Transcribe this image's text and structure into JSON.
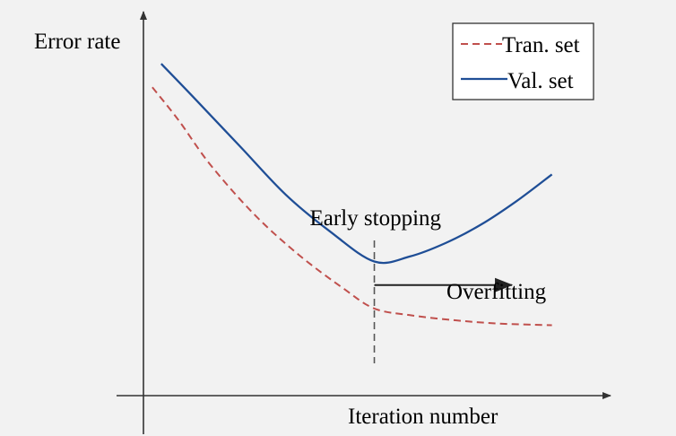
{
  "chart_data": {
    "type": "line",
    "title": "",
    "ylabel": "Error rate",
    "xlabel": "Iteration number",
    "grid": false,
    "legend_position": "top-right",
    "series": [
      {
        "name": "Tran. set",
        "color": "#c0504d",
        "style": "dashed",
        "x": [
          0.2,
          0.8,
          1.5,
          2.5,
          3.5,
          4.5,
          5.2,
          6,
          7,
          8,
          9.2
        ],
        "y": [
          9.2,
          8.2,
          6.9,
          5.4,
          4.2,
          3.2,
          2.6,
          2.4,
          2.25,
          2.15,
          2.1
        ]
      },
      {
        "name": "Val. set",
        "color": "#1f4e96",
        "style": "solid",
        "x": [
          0.4,
          1.2,
          2.2,
          3.2,
          4.2,
          5.2,
          6,
          6.8,
          7.6,
          8.4,
          9.2
        ],
        "y": [
          9.9,
          8.8,
          7.4,
          6.0,
          4.9,
          4.0,
          4.15,
          4.55,
          5.1,
          5.8,
          6.6
        ]
      }
    ],
    "xlim": [
      0,
      10.5
    ],
    "ylim": [
      0,
      11
    ],
    "annotations": {
      "early_stopping": {
        "text": "Early stopping",
        "x": 5.2
      },
      "overfitting": {
        "text": "Overfitting",
        "x_from": 5.2,
        "x_to": 8.3,
        "y": 3.3
      }
    }
  }
}
